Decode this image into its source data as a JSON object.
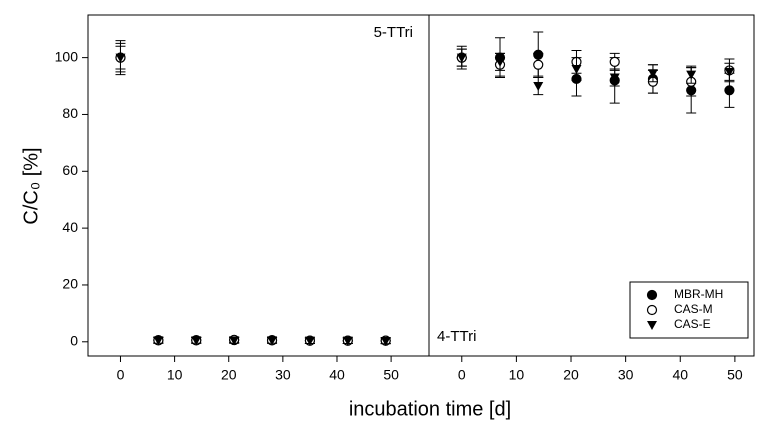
{
  "chart_data": [
    {
      "type": "scatter",
      "annotation": "5-TTri",
      "ylabel": "C/C₀ [%]",
      "xlabel": "incubation time [d]",
      "xlim": [
        -6,
        57
      ],
      "xticks": [
        0,
        10,
        20,
        30,
        40,
        50
      ],
      "ylim": [
        -5,
        115
      ],
      "yticks": [
        0,
        20,
        40,
        60,
        80,
        100
      ],
      "x": [
        0,
        7,
        14,
        21,
        28,
        35,
        42,
        49
      ],
      "series": [
        {
          "name": "MBR-MH",
          "color": "#000000",
          "marker": "circle-filled",
          "values": [
            100,
            0.6,
            0.6,
            0.6,
            0.6,
            0.4,
            0.4,
            0.4
          ],
          "errors": [
            6,
            1,
            1,
            1,
            1,
            1,
            1,
            1
          ]
        },
        {
          "name": "CAS-M",
          "color": "#000000",
          "marker": "circle-open",
          "values": [
            100,
            0.5,
            0.5,
            0.7,
            0.5,
            0.4,
            0.4,
            0.4
          ],
          "errors": [
            5,
            1,
            1,
            1,
            1,
            1,
            1,
            1
          ]
        },
        {
          "name": "CAS-E",
          "color": "#000000",
          "marker": "triangle-down",
          "values": [
            100,
            0.5,
            0.5,
            0.5,
            0.5,
            0.4,
            0.4,
            0.3
          ],
          "errors": [
            4,
            1,
            1,
            1,
            1,
            1,
            1,
            1
          ]
        }
      ]
    },
    {
      "type": "scatter",
      "annotation": "4-TTri",
      "legend": "lower right",
      "xlim": [
        -6,
        53.5
      ],
      "xticks": [
        0,
        10,
        20,
        30,
        40,
        50
      ],
      "x": [
        0,
        7,
        14,
        21,
        28,
        35,
        42,
        49
      ],
      "series": [
        {
          "name": "MBR-MH",
          "color": "#000000",
          "marker": "circle-filled",
          "values": [
            100,
            100,
            101,
            92.5,
            92,
            92.5,
            88.5,
            88.5
          ],
          "errors": [
            4,
            7,
            8,
            6,
            8,
            5,
            8,
            6
          ]
        },
        {
          "name": "CAS-M",
          "color": "#000000",
          "marker": "circle-open",
          "values": [
            100,
            97.5,
            97.5,
            98.5,
            98.5,
            91.5,
            91.5,
            95.5
          ],
          "errors": [
            3,
            4,
            4,
            4,
            3,
            4,
            5,
            4
          ]
        },
        {
          "name": "CAS-E",
          "color": "#000000",
          "marker": "triangle-down",
          "values": [
            100,
            98.5,
            90,
            96,
            93,
            94.5,
            94,
            95
          ],
          "errors": [
            3,
            3,
            3,
            4,
            3,
            3,
            3,
            3
          ]
        }
      ]
    }
  ]
}
